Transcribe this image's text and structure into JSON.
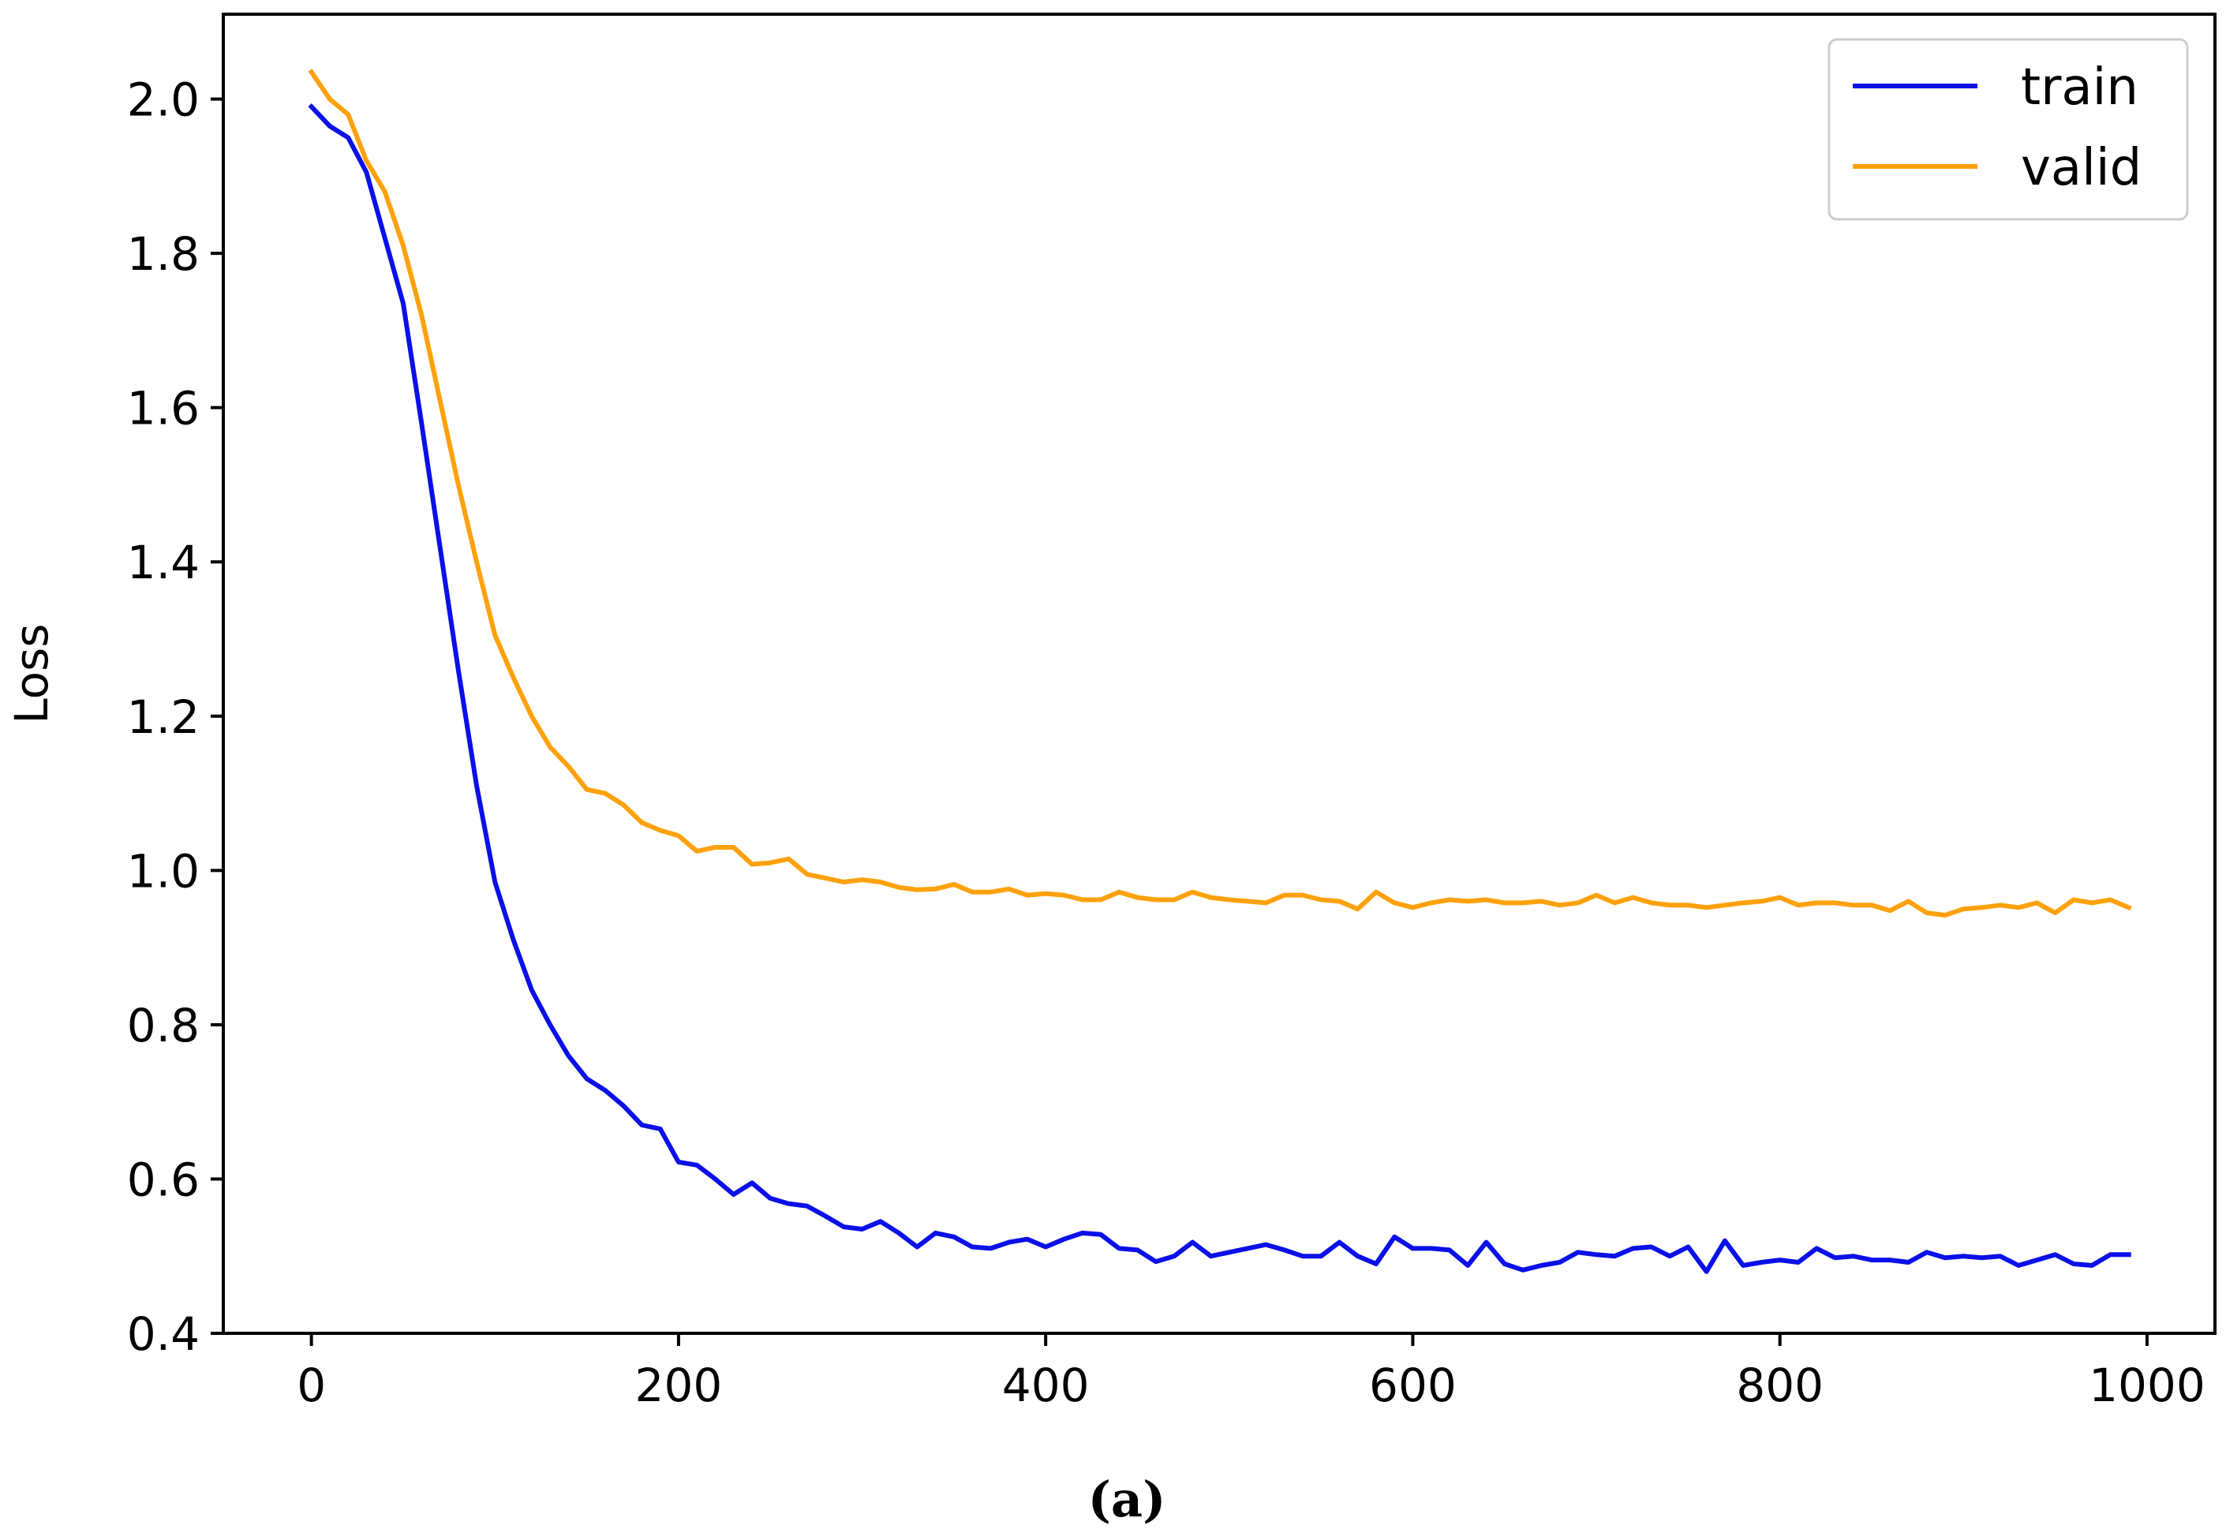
{
  "chart_data": {
    "type": "line",
    "title": "",
    "xlabel": "",
    "ylabel": "Loss",
    "caption": "(a)",
    "xlim": [
      -48,
      1037
    ],
    "ylim": [
      0.4,
      2.11
    ],
    "xticks": [
      0,
      200,
      400,
      600,
      800,
      1000
    ],
    "yticks": [
      0.4,
      0.6,
      0.8,
      1.0,
      1.2,
      1.4,
      1.6,
      1.8,
      2.0
    ],
    "xtick_labels": [
      "0",
      "200",
      "400",
      "600",
      "800",
      "1000"
    ],
    "ytick_labels": [
      "0.4",
      "0.6",
      "0.8",
      "1.0",
      "1.2",
      "1.4",
      "1.6",
      "1.8",
      "2.0"
    ],
    "grid": false,
    "legend_position": "top-right",
    "x": [
      0,
      10,
      20,
      30,
      40,
      50,
      60,
      70,
      80,
      90,
      100,
      110,
      120,
      130,
      140,
      150,
      160,
      170,
      180,
      190,
      200,
      210,
      220,
      230,
      240,
      250,
      260,
      270,
      280,
      290,
      300,
      310,
      320,
      330,
      340,
      350,
      360,
      370,
      380,
      390,
      400,
      410,
      420,
      430,
      440,
      450,
      460,
      470,
      480,
      490,
      500,
      510,
      520,
      530,
      540,
      550,
      560,
      570,
      580,
      590,
      600,
      610,
      620,
      630,
      640,
      650,
      660,
      670,
      680,
      690,
      700,
      710,
      720,
      730,
      740,
      750,
      760,
      770,
      780,
      790,
      800,
      810,
      820,
      830,
      840,
      850,
      860,
      870,
      880,
      890,
      900,
      910,
      920,
      930,
      940,
      950,
      960,
      970,
      980,
      990
    ],
    "series": [
      {
        "name": "train",
        "color": "#0a10e8",
        "values": [
          1.99,
          1.965,
          1.95,
          1.905,
          1.82,
          1.735,
          1.58,
          1.42,
          1.26,
          1.11,
          0.985,
          0.91,
          0.845,
          0.8,
          0.76,
          0.73,
          0.715,
          0.695,
          0.67,
          0.665,
          0.622,
          0.618,
          0.6,
          0.58,
          0.595,
          0.575,
          0.568,
          0.565,
          0.552,
          0.538,
          0.535,
          0.545,
          0.53,
          0.512,
          0.53,
          0.525,
          0.512,
          0.51,
          0.518,
          0.522,
          0.512,
          0.522,
          0.53,
          0.528,
          0.51,
          0.508,
          0.493,
          0.5,
          0.518,
          0.5,
          0.505,
          0.51,
          0.515,
          0.508,
          0.5,
          0.5,
          0.518,
          0.5,
          0.49,
          0.525,
          0.51,
          0.51,
          0.508,
          0.488,
          0.518,
          0.49,
          0.482,
          0.488,
          0.492,
          0.505,
          0.502,
          0.5,
          0.51,
          0.512,
          0.5,
          0.512,
          0.48,
          0.52,
          0.488,
          0.492,
          0.495,
          0.492,
          0.51,
          0.498,
          0.5,
          0.495,
          0.495,
          0.492,
          0.505,
          0.498,
          0.5,
          0.498,
          0.5,
          0.488,
          0.495,
          0.502,
          0.49,
          0.488,
          0.502,
          0.502
        ]
      },
      {
        "name": "valid",
        "color": "#ffa10c",
        "values": [
          2.035,
          2.0,
          1.98,
          1.92,
          1.88,
          1.81,
          1.72,
          1.61,
          1.5,
          1.4,
          1.305,
          1.25,
          1.2,
          1.16,
          1.135,
          1.105,
          1.1,
          1.085,
          1.062,
          1.052,
          1.045,
          1.025,
          1.03,
          1.03,
          1.008,
          1.01,
          1.015,
          0.995,
          0.99,
          0.985,
          0.988,
          0.985,
          0.978,
          0.975,
          0.976,
          0.982,
          0.972,
          0.972,
          0.976,
          0.968,
          0.97,
          0.968,
          0.962,
          0.962,
          0.972,
          0.965,
          0.962,
          0.962,
          0.972,
          0.965,
          0.962,
          0.96,
          0.958,
          0.968,
          0.968,
          0.962,
          0.96,
          0.95,
          0.972,
          0.958,
          0.952,
          0.958,
          0.962,
          0.96,
          0.962,
          0.958,
          0.958,
          0.96,
          0.955,
          0.958,
          0.968,
          0.958,
          0.965,
          0.958,
          0.955,
          0.955,
          0.952,
          0.955,
          0.958,
          0.96,
          0.965,
          0.955,
          0.958,
          0.958,
          0.955,
          0.955,
          0.948,
          0.96,
          0.945,
          0.942,
          0.95,
          0.952,
          0.955,
          0.952,
          0.958,
          0.945,
          0.962,
          0.958,
          0.962,
          0.952
        ]
      }
    ]
  }
}
